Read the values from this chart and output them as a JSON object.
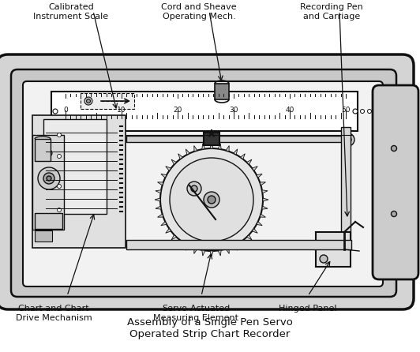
{
  "title": "Assembly of a Single Pen Servo\nOperated Strip Chart Recorder",
  "title_fontsize": 9.5,
  "bg_color": "#ffffff",
  "labels": {
    "calibrated": "Calibrated\nInstrument Scale",
    "cord": "Cord and Sheave\nOperating Mech.",
    "recording": "Recording Pen\nand Carriage",
    "chart": "Chart and Chart\nDrive Mechanism",
    "servo": "Servo-Actuated\nMeasuring Element",
    "hinged": "Hinged Panel"
  },
  "scale_ticks": [
    0,
    10,
    20,
    30,
    40,
    50
  ],
  "lc": "#111111",
  "gray1": "#e8e8e8",
  "gray2": "#d0d0d0",
  "gray3": "#b8b8b8",
  "gray4": "#989898",
  "gray5": "#787878"
}
